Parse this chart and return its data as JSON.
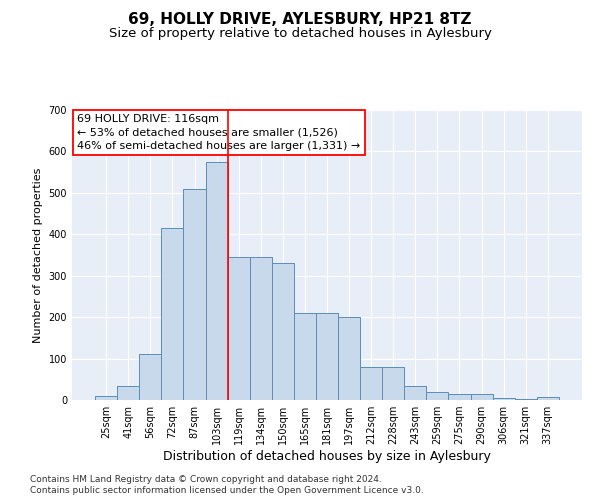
{
  "title1": "69, HOLLY DRIVE, AYLESBURY, HP21 8TZ",
  "title2": "Size of property relative to detached houses in Aylesbury",
  "xlabel": "Distribution of detached houses by size in Aylesbury",
  "ylabel": "Number of detached properties",
  "bin_labels": [
    "25sqm",
    "41sqm",
    "56sqm",
    "72sqm",
    "87sqm",
    "103sqm",
    "119sqm",
    "134sqm",
    "150sqm",
    "165sqm",
    "181sqm",
    "197sqm",
    "212sqm",
    "228sqm",
    "243sqm",
    "259sqm",
    "275sqm",
    "290sqm",
    "306sqm",
    "321sqm",
    "337sqm"
  ],
  "bar_heights": [
    10,
    35,
    110,
    415,
    510,
    575,
    345,
    345,
    330,
    210,
    210,
    200,
    80,
    80,
    35,
    20,
    15,
    15,
    5,
    2,
    8
  ],
  "bar_color": "#c9d9ec",
  "bar_edge_color": "#5b8db8",
  "vline_x": 5.5,
  "vline_color": "red",
  "ylim": [
    0,
    700
  ],
  "yticks": [
    0,
    100,
    200,
    300,
    400,
    500,
    600,
    700
  ],
  "annotation_text": "69 HOLLY DRIVE: 116sqm\n← 53% of detached houses are smaller (1,526)\n46% of semi-detached houses are larger (1,331) →",
  "annotation_box_color": "white",
  "annotation_box_edge": "red",
  "background_color": "#e8eef7",
  "footer_line1": "Contains HM Land Registry data © Crown copyright and database right 2024.",
  "footer_line2": "Contains public sector information licensed under the Open Government Licence v3.0.",
  "title1_fontsize": 11,
  "title2_fontsize": 9.5,
  "xlabel_fontsize": 9,
  "ylabel_fontsize": 8,
  "annotation_fontsize": 8,
  "footer_fontsize": 6.5,
  "tick_fontsize": 7
}
